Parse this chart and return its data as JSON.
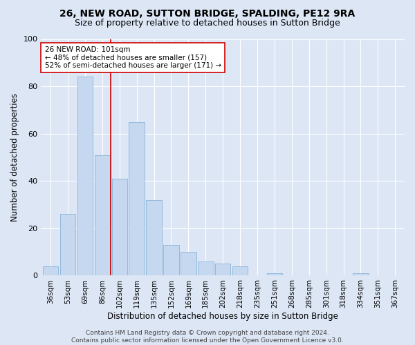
{
  "title1": "26, NEW ROAD, SUTTON BRIDGE, SPALDING, PE12 9RA",
  "title2": "Size of property relative to detached houses in Sutton Bridge",
  "xlabel": "Distribution of detached houses by size in Sutton Bridge",
  "ylabel": "Number of detached properties",
  "categories": [
    "36sqm",
    "53sqm",
    "69sqm",
    "86sqm",
    "102sqm",
    "119sqm",
    "135sqm",
    "152sqm",
    "169sqm",
    "185sqm",
    "202sqm",
    "218sqm",
    "235sqm",
    "251sqm",
    "268sqm",
    "285sqm",
    "301sqm",
    "318sqm",
    "334sqm",
    "351sqm",
    "367sqm"
  ],
  "values": [
    4,
    26,
    84,
    51,
    41,
    65,
    32,
    13,
    10,
    6,
    5,
    4,
    0,
    1,
    0,
    0,
    0,
    0,
    1,
    0,
    0
  ],
  "bar_color": "#c5d8ef",
  "bar_edge_color": "#7badd4",
  "vline_color": "#cc0000",
  "annotation_text": "26 NEW ROAD: 101sqm\n← 48% of detached houses are smaller (157)\n52% of semi-detached houses are larger (171) →",
  "annotation_box_color": "#ffffff",
  "annotation_box_edge": "#cc0000",
  "background_color": "#dce6f5",
  "plot_background": "#dce6f5",
  "grid_color": "#ffffff",
  "footer1": "Contains HM Land Registry data © Crown copyright and database right 2024.",
  "footer2": "Contains public sector information licensed under the Open Government Licence v3.0.",
  "ylim": [
    0,
    100
  ],
  "yticks": [
    0,
    20,
    40,
    60,
    80,
    100
  ],
  "title1_fontsize": 10,
  "title2_fontsize": 9,
  "xlabel_fontsize": 8.5,
  "ylabel_fontsize": 8.5,
  "tick_fontsize": 7.5,
  "annotation_fontsize": 7.5,
  "footer_fontsize": 6.5,
  "vline_bar_index": 3.5
}
